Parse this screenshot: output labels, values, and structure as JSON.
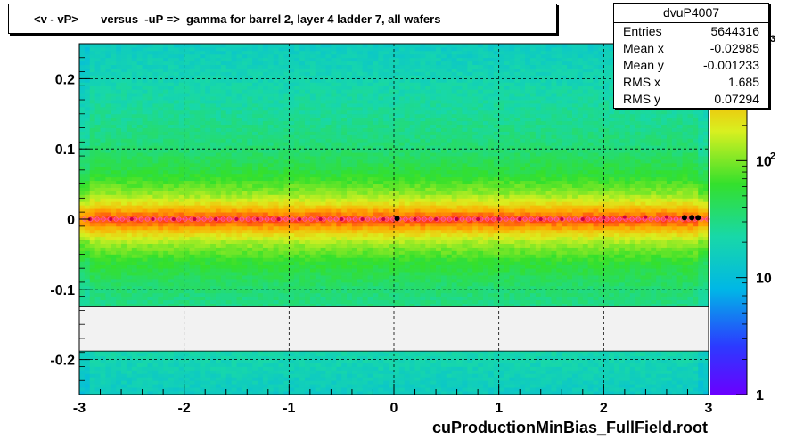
{
  "title": "<v - vP>       versus  -uP =>  gamma for barrel 2, layer 4 ladder 7, all wafers",
  "stats": {
    "name": "dvuP4007",
    "rows": [
      {
        "label": "Entries",
        "value": "5644316"
      },
      {
        "label": "Mean x",
        "value": "-0.02985"
      },
      {
        "label": "Mean y",
        "value": "-0.001233"
      },
      {
        "label": "RMS x",
        "value": "1.685"
      },
      {
        "label": "RMS y",
        "value": "0.07294"
      }
    ]
  },
  "footer": "cuProductionMinBias_FullField.root",
  "chart_data": {
    "type": "heatmap",
    "title": "<v - vP>       versus  -uP =>  gamma for barrel 2, layer 4 ladder 7, all wafers",
    "xlim": [
      -3,
      3
    ],
    "ylim": [
      -0.25,
      0.25
    ],
    "x_ticks": [
      {
        "value": -3,
        "label": "-3"
      },
      {
        "value": -2,
        "label": "-2"
      },
      {
        "value": -1,
        "label": "-1"
      },
      {
        "value": 0,
        "label": "0"
      },
      {
        "value": 1,
        "label": "1"
      },
      {
        "value": 2,
        "label": "2"
      },
      {
        "value": 3,
        "label": "3"
      }
    ],
    "y_ticks": [
      {
        "value": -0.2,
        "label": "-0.2"
      },
      {
        "value": -0.1,
        "label": "-0.1"
      },
      {
        "value": 0,
        "label": "0"
      },
      {
        "value": 0.1,
        "label": "0.1"
      },
      {
        "value": 0.2,
        "label": "0.2"
      }
    ],
    "grid": true,
    "empty_y_band": [
      -0.188,
      -0.125
    ],
    "colorbar": {
      "scale": "log",
      "range": [
        1,
        1000
      ],
      "ticks": [
        {
          "value": 1,
          "label": "1"
        },
        {
          "value": 10,
          "label": "10"
        },
        {
          "value": 100,
          "label": "10",
          "sup": "2"
        },
        {
          "value": 1000,
          "label": "10",
          "sup": "3"
        }
      ]
    },
    "density_profile": [
      {
        "y": 0.0,
        "count": 800
      },
      {
        "y": 0.01,
        "count": 500
      },
      {
        "y": 0.02,
        "count": 250
      },
      {
        "y": 0.035,
        "count": 120
      },
      {
        "y": 0.06,
        "count": 60
      },
      {
        "y": 0.1,
        "count": 35
      },
      {
        "y": 0.18,
        "count": 22
      },
      {
        "y": 0.25,
        "count": 15
      }
    ],
    "profile_points": [
      {
        "x": -2.9,
        "y": 0.0
      },
      {
        "x": -2.7,
        "y": 0.0
      },
      {
        "x": -2.5,
        "y": 0.0
      },
      {
        "x": -2.3,
        "y": 0.0
      },
      {
        "x": -2.1,
        "y": 0.0
      },
      {
        "x": -1.9,
        "y": 0.0
      },
      {
        "x": -1.7,
        "y": 0.0
      },
      {
        "x": -1.5,
        "y": 0.0
      },
      {
        "x": -1.3,
        "y": 0.0
      },
      {
        "x": -1.1,
        "y": 0.0
      },
      {
        "x": -0.9,
        "y": 0.0
      },
      {
        "x": -0.7,
        "y": 0.0
      },
      {
        "x": -0.5,
        "y": 0.0
      },
      {
        "x": -0.3,
        "y": 0.0
      },
      {
        "x": -0.1,
        "y": 0.0
      },
      {
        "x": 0.03,
        "y": 0.001
      },
      {
        "x": 0.2,
        "y": 0.0
      },
      {
        "x": 0.4,
        "y": 0.0
      },
      {
        "x": 0.6,
        "y": 0.0
      },
      {
        "x": 0.8,
        "y": 0.0
      },
      {
        "x": 1.0,
        "y": 0.0
      },
      {
        "x": 1.2,
        "y": 0.0
      },
      {
        "x": 1.4,
        "y": 0.0
      },
      {
        "x": 1.6,
        "y": 0.0
      },
      {
        "x": 1.8,
        "y": 0.0
      },
      {
        "x": 2.0,
        "y": 0.002
      },
      {
        "x": 2.2,
        "y": 0.003
      },
      {
        "x": 2.4,
        "y": 0.003
      },
      {
        "x": 2.6,
        "y": 0.003
      },
      {
        "x": 2.77,
        "y": 0.002
      },
      {
        "x": 2.84,
        "y": 0.002
      },
      {
        "x": 2.9,
        "y": 0.002
      }
    ]
  }
}
